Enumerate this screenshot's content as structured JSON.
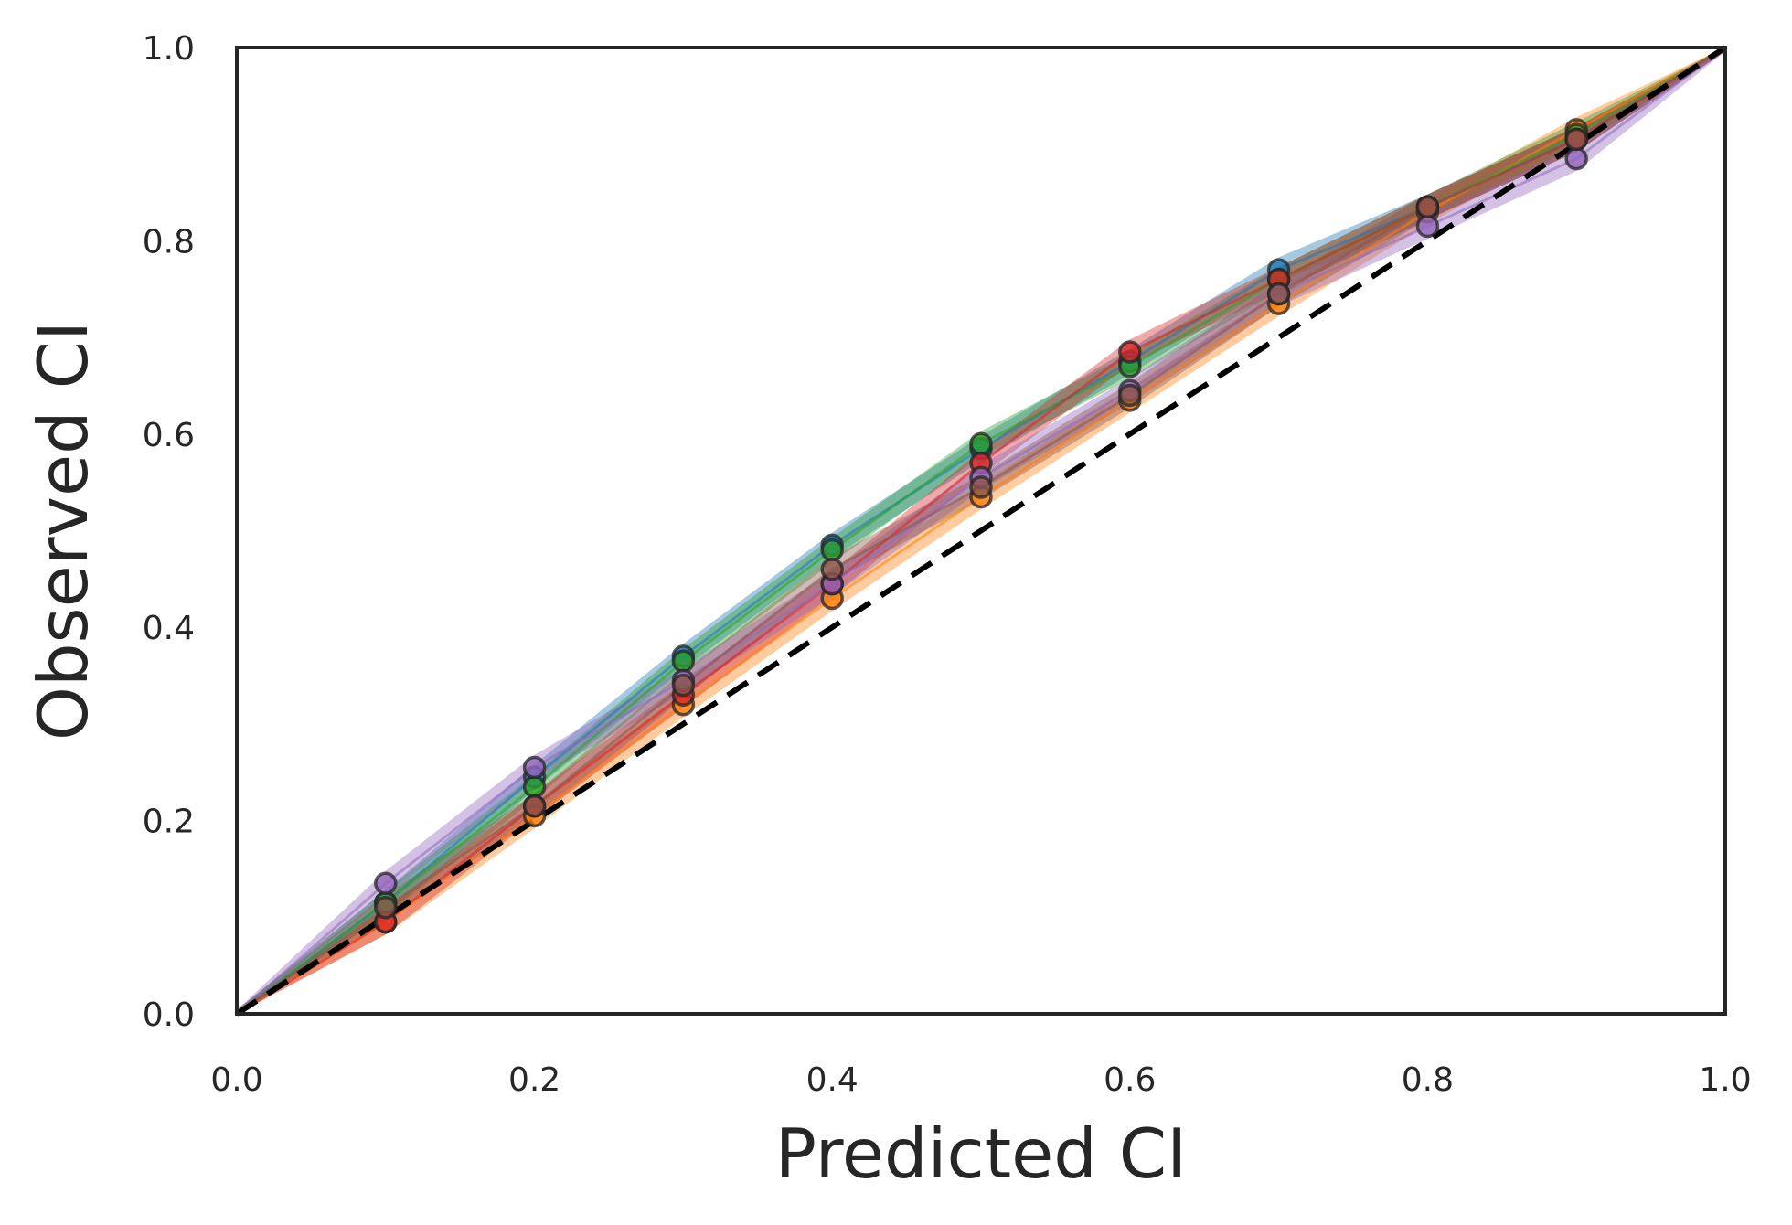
{
  "chart_data": {
    "type": "line",
    "title": "",
    "xlabel": "Predicted CI",
    "ylabel": "Observed CI",
    "xlim": [
      0.0,
      1.0
    ],
    "ylim": [
      0.0,
      1.0
    ],
    "xticks": [
      "0.0",
      "0.2",
      "0.4",
      "0.6",
      "0.8",
      "1.0"
    ],
    "yticks": [
      "0.0",
      "0.2",
      "0.4",
      "0.6",
      "0.8",
      "1.0"
    ],
    "grid": false,
    "legend": "none",
    "x": [
      0.0,
      0.1,
      0.2,
      0.3,
      0.4,
      0.5,
      0.6,
      0.7,
      0.8,
      0.9,
      1.0
    ],
    "reference_line": {
      "x": [
        0.0,
        1.0
      ],
      "y": [
        0.0,
        1.0
      ],
      "style": "dashed",
      "color": "#000000"
    },
    "series": [
      {
        "color": "#1f77b4",
        "values": [
          0.0,
          0.115,
          0.245,
          0.37,
          0.485,
          0.585,
          0.675,
          0.77,
          0.835,
          0.905,
          1.0
        ]
      },
      {
        "color": "#ff7f0e",
        "values": [
          0.0,
          0.095,
          0.205,
          0.32,
          0.43,
          0.535,
          0.635,
          0.735,
          0.83,
          0.915,
          1.0
        ]
      },
      {
        "color": "#2ca02c",
        "values": [
          0.0,
          0.115,
          0.235,
          0.365,
          0.48,
          0.59,
          0.67,
          0.76,
          0.835,
          0.91,
          1.0
        ]
      },
      {
        "color": "#d62728",
        "values": [
          0.0,
          0.095,
          0.215,
          0.33,
          0.445,
          0.57,
          0.685,
          0.76,
          0.835,
          0.905,
          1.0
        ]
      },
      {
        "color": "#9467bd",
        "values": [
          0.0,
          0.135,
          0.255,
          0.345,
          0.445,
          0.555,
          0.645,
          0.745,
          0.815,
          0.885,
          1.0
        ]
      },
      {
        "color": "#8c564b",
        "values": [
          0.0,
          0.11,
          0.215,
          0.34,
          0.46,
          0.545,
          0.64,
          0.745,
          0.835,
          0.905,
          1.0
        ]
      }
    ]
  }
}
